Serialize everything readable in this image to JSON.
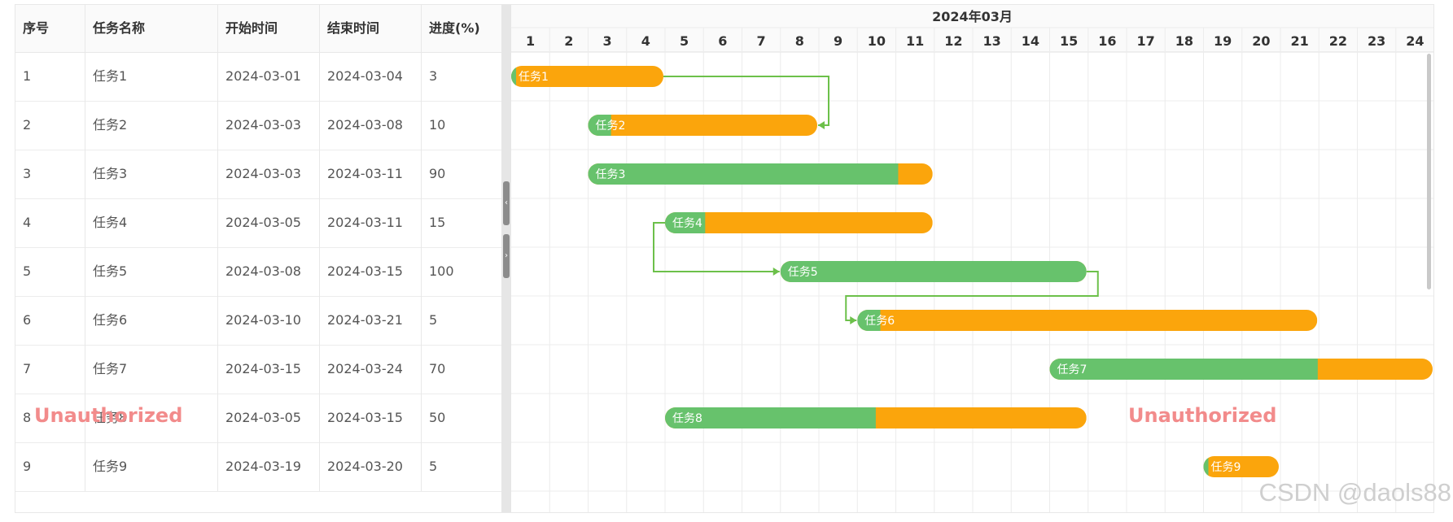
{
  "table": {
    "columns": [
      "序号",
      "任务名称",
      "开始时间",
      "结束时间",
      "进度(%)"
    ],
    "rows": [
      {
        "no": "1",
        "name": "任务1",
        "start": "2024-03-01",
        "end": "2024-03-04",
        "progress": "3"
      },
      {
        "no": "2",
        "name": "任务2",
        "start": "2024-03-03",
        "end": "2024-03-08",
        "progress": "10"
      },
      {
        "no": "3",
        "name": "任务3",
        "start": "2024-03-03",
        "end": "2024-03-11",
        "progress": "90"
      },
      {
        "no": "4",
        "name": "任务4",
        "start": "2024-03-05",
        "end": "2024-03-11",
        "progress": "15"
      },
      {
        "no": "5",
        "name": "任务5",
        "start": "2024-03-08",
        "end": "2024-03-15",
        "progress": "100"
      },
      {
        "no": "6",
        "name": "任务6",
        "start": "2024-03-10",
        "end": "2024-03-21",
        "progress": "5"
      },
      {
        "no": "7",
        "name": "任务7",
        "start": "2024-03-15",
        "end": "2024-03-24",
        "progress": "70"
      },
      {
        "no": "8",
        "name": "任务8",
        "start": "2024-03-05",
        "end": "2024-03-15",
        "progress": "50"
      },
      {
        "no": "9",
        "name": "任务9",
        "start": "2024-03-19",
        "end": "2024-03-20",
        "progress": "5"
      }
    ]
  },
  "splitter": {
    "collapse_glyph": "‹",
    "expand_glyph": "›"
  },
  "timeline": {
    "month_label": "2024年03月",
    "days": [
      "1",
      "2",
      "3",
      "4",
      "5",
      "6",
      "7",
      "8",
      "9",
      "10",
      "11",
      "12",
      "13",
      "14",
      "15",
      "16",
      "17",
      "18",
      "19",
      "20",
      "21",
      "22",
      "23",
      "24"
    ]
  },
  "gantt_bars": [
    {
      "label": "任务1",
      "start_day": 1,
      "end_day": 4,
      "progress": 3
    },
    {
      "label": "任务2",
      "start_day": 3,
      "end_day": 8,
      "progress": 10
    },
    {
      "label": "任务3",
      "start_day": 3,
      "end_day": 11,
      "progress": 90
    },
    {
      "label": "任务4",
      "start_day": 5,
      "end_day": 11,
      "progress": 15
    },
    {
      "label": "任务5",
      "start_day": 8,
      "end_day": 15,
      "progress": 100
    },
    {
      "label": "任务6",
      "start_day": 10,
      "end_day": 21,
      "progress": 5
    },
    {
      "label": "任务7",
      "start_day": 15,
      "end_day": 24,
      "progress": 70
    },
    {
      "label": "任务8",
      "start_day": 5,
      "end_day": 15,
      "progress": 50
    },
    {
      "label": "任务9",
      "start_day": 19,
      "end_day": 20,
      "progress": 5
    }
  ],
  "dependencies": [
    {
      "from": "任务1",
      "to": "任务2",
      "type": "finish-to-finish"
    },
    {
      "from": "任务4",
      "to": "任务5",
      "type": "start-to-start"
    },
    {
      "from": "任务5",
      "to": "任务6",
      "type": "finish-to-start"
    }
  ],
  "colors": {
    "progress": "#67c26c",
    "remaining": "#fba50c",
    "link": "#6cc04a",
    "grid": "#ececec"
  },
  "watermark": {
    "left": "Unauthorized",
    "right": "Unauthorized",
    "source": "CSDN @daols88"
  }
}
